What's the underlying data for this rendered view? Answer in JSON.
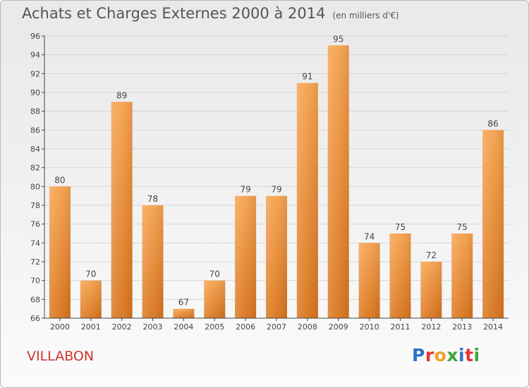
{
  "title": "Achats et Charges Externes 2000 à 2014",
  "subtitle": "(en milliers d'€)",
  "commune": "VILLABON",
  "logo": {
    "text": "Proxiti",
    "letters": [
      {
        "ch": "P",
        "color": "#2a73c9"
      },
      {
        "ch": "r",
        "color": "#e8342b"
      },
      {
        "ch": "o",
        "color": "#f2a024"
      },
      {
        "ch": "x",
        "color": "#3aa63d"
      },
      {
        "ch": "i",
        "color": "#2a73c9"
      },
      {
        "ch": "t",
        "color": "#e8342b"
      },
      {
        "ch": "i",
        "color": "#3aa63d"
      }
    ]
  },
  "colors": {
    "bar_top": "#f6a24e",
    "bar_bottom": "#d9751e",
    "axis": "#444444",
    "grid": "#d6d6d6",
    "text": "#444444"
  },
  "chart_data": {
    "type": "bar",
    "categories": [
      "2000",
      "2001",
      "2002",
      "2003",
      "2004",
      "2005",
      "2006",
      "2007",
      "2008",
      "2009",
      "2010",
      "2011",
      "2012",
      "2013",
      "2014"
    ],
    "values": [
      80,
      70,
      89,
      78,
      67,
      70,
      79,
      79,
      91,
      95,
      74,
      75,
      72,
      75,
      86
    ],
    "ylim": [
      66,
      96
    ],
    "yticks": [
      66,
      68,
      70,
      72,
      74,
      76,
      78,
      80,
      82,
      84,
      86,
      88,
      90,
      92,
      94,
      96
    ],
    "grid": true,
    "title": "Achats et Charges Externes 2000 à 2014",
    "subtitle": "(en milliers d'€)"
  }
}
